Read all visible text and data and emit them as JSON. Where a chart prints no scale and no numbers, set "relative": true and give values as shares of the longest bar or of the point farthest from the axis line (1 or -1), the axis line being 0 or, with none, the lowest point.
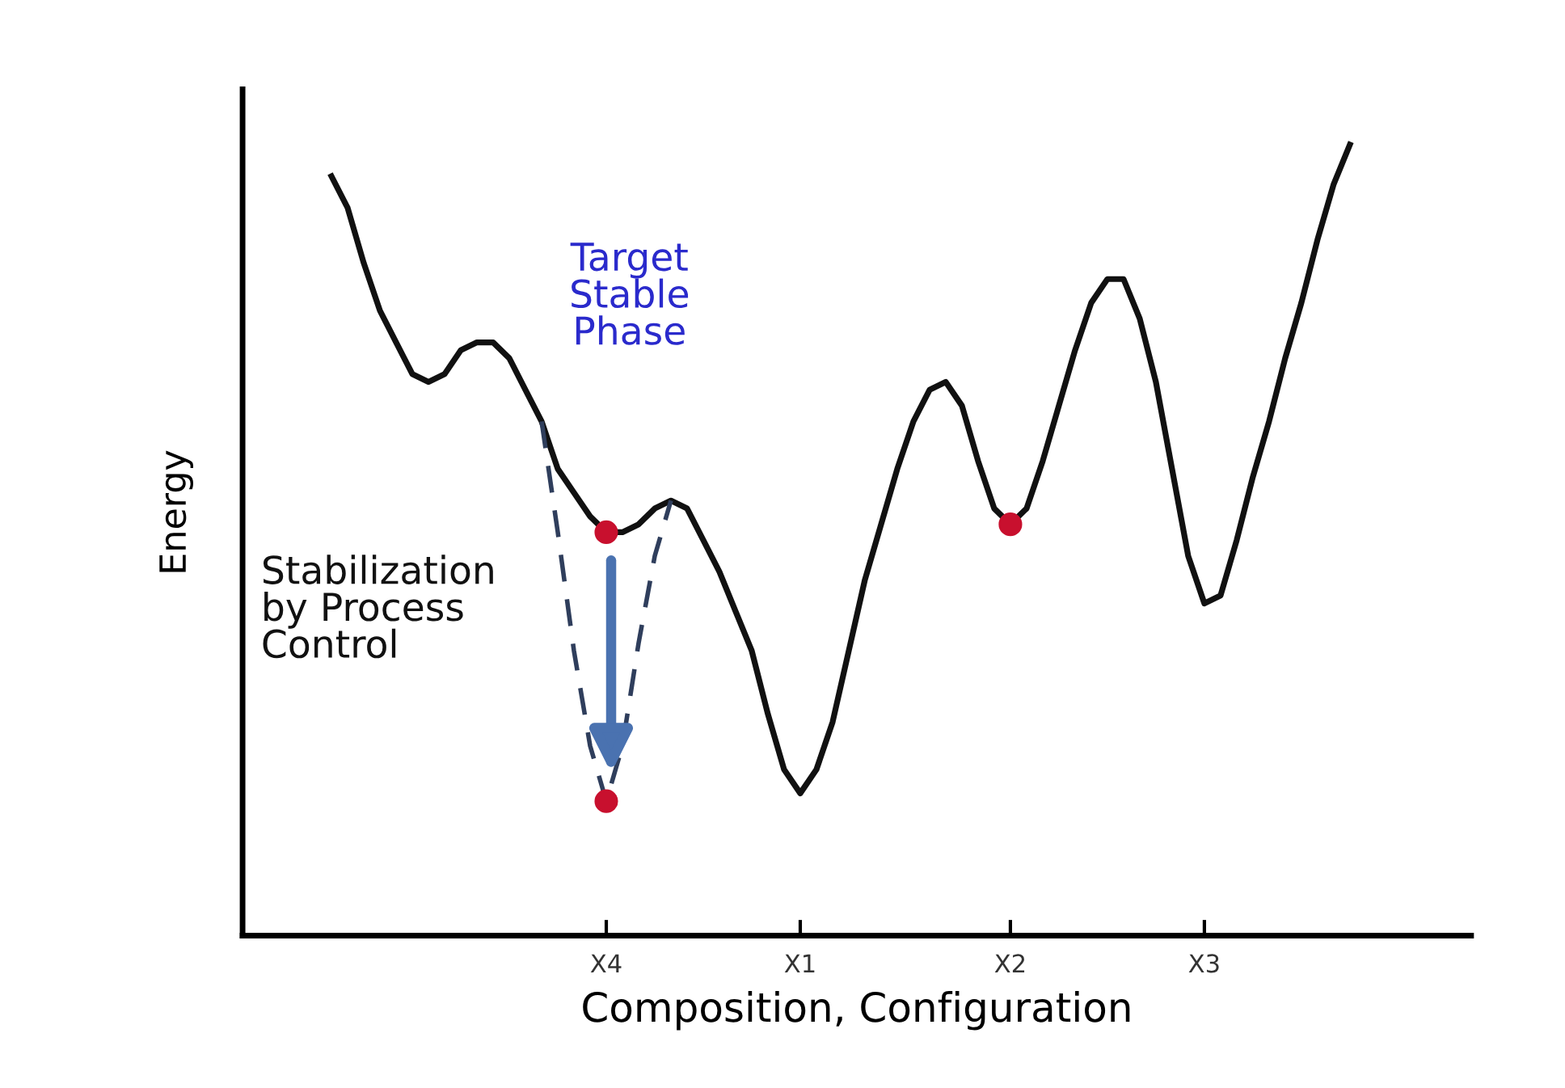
{
  "chart_data": {
    "type": "line",
    "relative": true,
    "xlabel": "Composition, Configuration",
    "ylabel": "Energy",
    "categories": [
      null,
      null,
      null,
      null,
      null,
      null,
      null,
      null,
      null,
      null,
      null,
      null,
      null,
      null,
      null,
      null,
      null,
      "X4",
      null,
      null,
      null,
      null,
      null,
      null,
      null,
      null,
      null,
      null,
      null,
      "X1",
      null,
      null,
      null,
      null,
      null,
      null,
      null,
      null,
      null,
      null,
      null,
      null,
      "X2",
      null,
      null,
      null,
      null,
      null,
      null,
      null,
      null,
      null,
      null,
      null,
      "X3",
      null,
      null,
      null,
      null,
      null,
      null,
      null,
      null,
      null
    ],
    "series": [
      {
        "color": "#111111",
        "line_style": "solid",
        "marker": "none",
        "values": [
          0.96,
          0.92,
          0.85,
          0.79,
          0.75,
          0.71,
          0.7,
          0.71,
          0.74,
          0.75,
          0.75,
          0.73,
          0.69,
          0.65,
          0.59,
          0.56,
          0.53,
          0.51,
          0.51,
          0.52,
          0.54,
          0.55,
          0.54,
          0.5,
          0.46,
          0.41,
          0.36,
          0.28,
          0.21,
          0.18,
          0.21,
          0.27,
          0.36,
          0.45,
          0.52,
          0.59,
          0.65,
          0.69,
          0.7,
          0.67,
          0.6,
          0.54,
          0.52,
          0.54,
          0.6,
          0.67,
          0.74,
          0.8,
          0.83,
          0.83,
          0.78,
          0.7,
          0.59,
          0.48,
          0.42,
          0.43,
          0.5,
          0.58,
          0.65,
          0.73,
          0.8,
          0.88,
          0.95,
          1
        ]
      },
      {
        "color": "#2f3e5c",
        "line_style": "dashed",
        "marker": "none",
        "values": [
          null,
          null,
          null,
          null,
          null,
          null,
          null,
          null,
          null,
          null,
          null,
          null,
          null,
          0.65,
          0.51,
          0.36,
          0.24,
          0.17,
          0.24,
          0.37,
          0.48,
          0.55,
          null,
          null,
          null,
          null,
          null,
          null,
          null,
          null,
          null,
          null,
          null,
          null,
          null,
          null,
          null,
          null,
          null,
          null,
          null,
          null,
          null,
          null,
          null,
          null,
          null,
          null,
          null,
          null,
          null,
          null,
          null,
          null,
          null,
          null,
          null,
          null,
          null,
          null,
          null,
          null,
          null,
          null
        ]
      },
      {
        "type": "scatter",
        "color": "#c8102e",
        "marker": "circle",
        "values": [
          null,
          null,
          null,
          null,
          null,
          null,
          null,
          null,
          null,
          null,
          null,
          null,
          null,
          null,
          null,
          null,
          null,
          0.51,
          null,
          null,
          null,
          null,
          null,
          null,
          null,
          null,
          null,
          null,
          null,
          null,
          null,
          null,
          null,
          null,
          null,
          null,
          null,
          null,
          null,
          null,
          null,
          null,
          0.52,
          null,
          null,
          null,
          null,
          null,
          null,
          null,
          null,
          null,
          null,
          null,
          null,
          null,
          null,
          null,
          null,
          null,
          null,
          null,
          null,
          null
        ]
      },
      {
        "type": "scatter",
        "color": "#c8102e",
        "marker": "circle",
        "values": [
          null,
          null,
          null,
          null,
          null,
          null,
          null,
          null,
          null,
          null,
          null,
          null,
          null,
          null,
          null,
          null,
          null,
          0.17,
          null,
          null,
          null,
          null,
          null,
          null,
          null,
          null,
          null,
          null,
          null,
          null,
          null,
          null,
          null,
          null,
          null,
          null,
          null,
          null,
          null,
          null,
          null,
          null,
          null,
          null,
          null,
          null,
          null,
          null,
          null,
          null,
          null,
          null,
          null,
          null,
          null,
          null,
          null,
          null,
          null,
          null,
          null,
          null,
          null,
          null
        ]
      }
    ],
    "annotations": [
      "Target\nStable\nPhase",
      "Stabilization\nby Process\nControl"
    ],
    "grid": false,
    "legend": false
  }
}
